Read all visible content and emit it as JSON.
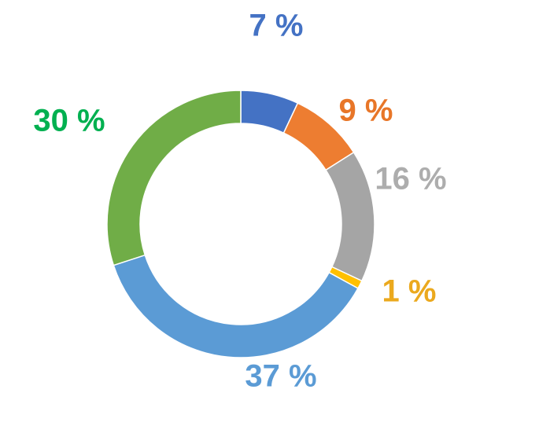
{
  "chart_data": {
    "type": "pie",
    "subtype": "donut",
    "slices": [
      {
        "label": "7 %",
        "value": 7,
        "color": "#4472C4",
        "label_color": "#4472C4"
      },
      {
        "label": "9 %",
        "value": 9,
        "color": "#ED7D31",
        "label_color": "#E87628"
      },
      {
        "label": "16 %",
        "value": 16,
        "color": "#A5A5A5",
        "label_color": "#ADADAD"
      },
      {
        "label": "1 %",
        "value": 1,
        "color": "#FFC000",
        "label_color": "#EBA91E"
      },
      {
        "label": "37 %",
        "value": 37,
        "color": "#5B9BD5",
        "label_color": "#5B9BD5"
      },
      {
        "label": "30 %",
        "value": 30,
        "color": "#70AD47",
        "label_color": "#00B050"
      }
    ],
    "legend": "none"
  }
}
